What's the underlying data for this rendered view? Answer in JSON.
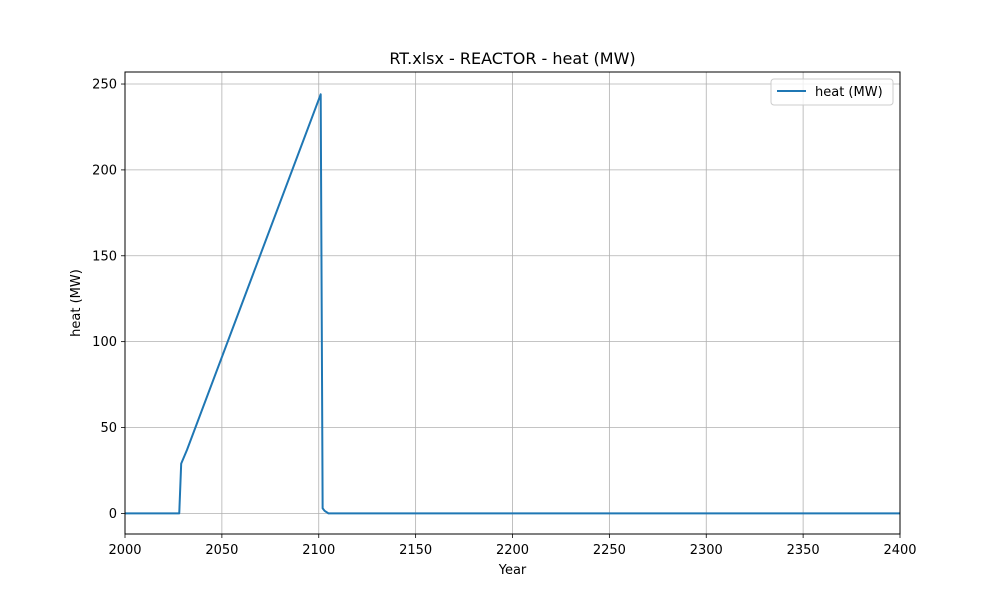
{
  "chart_data": {
    "type": "line",
    "title": "RT.xlsx - REACTOR - heat (MW)",
    "xlabel": "Year",
    "ylabel": "heat (MW)",
    "xlim": [
      2000,
      2400
    ],
    "ylim": [
      -12,
      257
    ],
    "x_ticks": [
      2000,
      2050,
      2100,
      2150,
      2200,
      2250,
      2300,
      2350,
      2400
    ],
    "y_ticks": [
      0,
      50,
      100,
      150,
      200,
      250
    ],
    "grid": true,
    "legend_position": "top-right",
    "series": [
      {
        "name": "heat (MW)",
        "color": "#1f77b4",
        "x": [
          2000,
          2028,
          2029,
          2032,
          2101,
          2102,
          2103,
          2105,
          2400
        ],
        "y": [
          0,
          0,
          29,
          37,
          244,
          3,
          1.5,
          0,
          0
        ]
      }
    ]
  }
}
